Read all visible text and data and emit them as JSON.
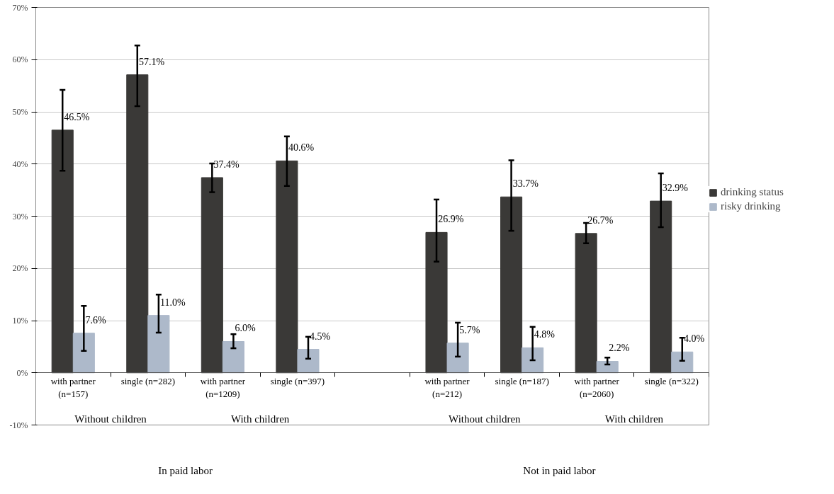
{
  "chart_data": {
    "type": "bar",
    "categories": [
      "with partner\n(n=157)",
      "single (n=282)",
      "with partner\n(n=1209)",
      "single (n=397)",
      null,
      "with partner\n(n=212)",
      "single (n=187)",
      "with partner\n(n=2060)",
      "single (n=322)"
    ],
    "series": [
      {
        "name": "drinking status",
        "color": "#3a3937",
        "values": [
          46.5,
          57.1,
          37.4,
          40.6,
          null,
          26.9,
          33.7,
          26.7,
          32.9
        ],
        "errors": [
          [
            38.7,
            54.2
          ],
          [
            51.1,
            62.7
          ],
          [
            34.6,
            40.1
          ],
          [
            35.8,
            45.3
          ],
          null,
          [
            21.3,
            33.2
          ],
          [
            27.2,
            40.7
          ],
          [
            24.8,
            28.7
          ],
          [
            27.9,
            38.2
          ]
        ],
        "value_labels": [
          "46.5%",
          "57.1%",
          "37.4%",
          "40.6%",
          null,
          "26.9%",
          "33.7%",
          "26.7%",
          "32.9%"
        ]
      },
      {
        "name": "risky drinking",
        "color": "#adb9ca",
        "values": [
          7.6,
          11.0,
          6.0,
          4.5,
          null,
          5.7,
          4.8,
          2.2,
          4.0
        ],
        "errors": [
          [
            4.2,
            12.8
          ],
          [
            7.7,
            15.0
          ],
          [
            4.7,
            7.4
          ],
          [
            2.7,
            6.9
          ],
          null,
          [
            3.1,
            9.6
          ],
          [
            2.4,
            8.8
          ],
          [
            1.6,
            2.9
          ],
          [
            2.3,
            6.7
          ]
        ],
        "value_labels": [
          "7.6%",
          "11.0%",
          "6.0%",
          "4.5%",
          null,
          "5.7%",
          "4.8%",
          "2.2%",
          "4.0%"
        ]
      }
    ],
    "annotations": [
      "Without children",
      "With children",
      "Without children",
      "With children",
      "In paid labor",
      "Not in paid labor"
    ],
    "ylim": [
      -10,
      70
    ],
    "yticks": [
      {
        "value": -10,
        "label": "-10%"
      },
      {
        "value": 0,
        "label": "0%"
      },
      {
        "value": 10,
        "label": "10%"
      },
      {
        "value": 20,
        "label": "20%"
      },
      {
        "value": 30,
        "label": "30%"
      },
      {
        "value": 40,
        "label": "40%"
      },
      {
        "value": 50,
        "label": "50%"
      },
      {
        "value": 60,
        "label": "60%"
      },
      {
        "value": 70,
        "label": "70%"
      }
    ],
    "grid": "y",
    "legend": "right"
  }
}
